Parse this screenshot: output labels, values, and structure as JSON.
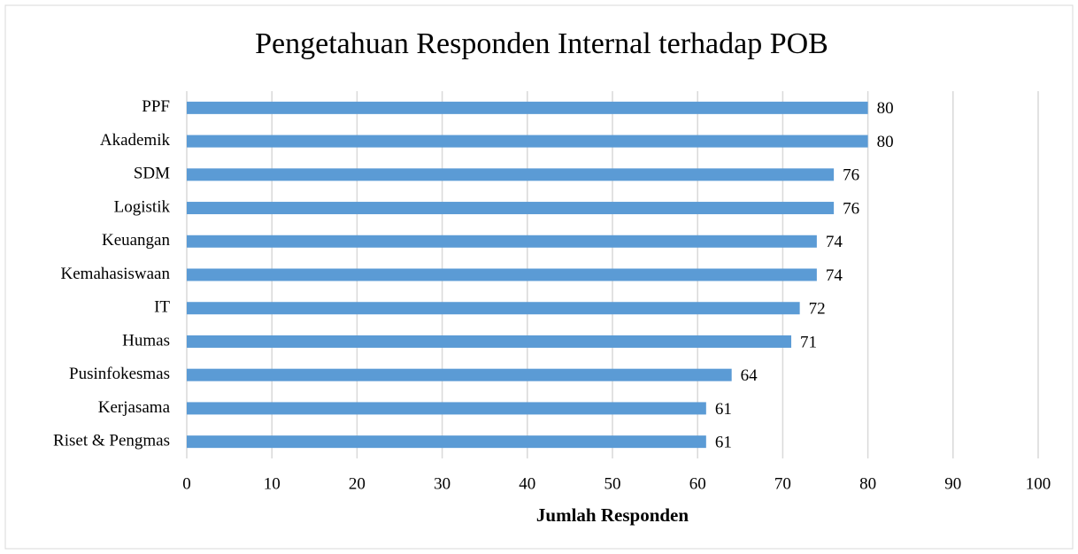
{
  "chart_data": {
    "type": "barh",
    "title": "Pengetahuan Responden Internal terhadap POB",
    "xlabel": "Jumlah Responden",
    "categories": [
      "PPF",
      "Akademik",
      "SDM",
      "Logistik",
      "Keuangan",
      "Kemahasiswaan",
      "IT",
      "Humas",
      "Pusinfokesmas",
      "Kerjasama",
      "Riset & Pengmas"
    ],
    "values": [
      80,
      80,
      76,
      76,
      74,
      74,
      72,
      71,
      64,
      61,
      61
    ],
    "color": "#5b9bd5",
    "xlim": [
      0,
      100
    ],
    "xticks": [
      0,
      10,
      20,
      30,
      40,
      50,
      60,
      70,
      80,
      90,
      100
    ],
    "grid": true
  }
}
